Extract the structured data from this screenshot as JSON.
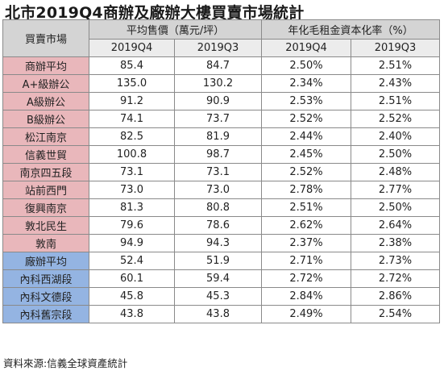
{
  "title": "北市2019Q4商辦及廠辦大樓買賣市場統計",
  "source": "資料來源:信義全球資產統計",
  "colors": {
    "office_row": "#e9b7bb",
    "factory_row": "#94b4e2",
    "header": "#d4d4d4"
  },
  "table": {
    "corner_label": "買賣市場",
    "group_headers": [
      "平均售價（萬元/坪）",
      "年化毛租金資本化率（%）"
    ],
    "sub_headers": [
      "2019Q4",
      "2019Q3",
      "2019Q4",
      "2019Q3"
    ],
    "rows": [
      {
        "name": "商辦平均",
        "type": "office",
        "price_q4": "85.4",
        "price_q3": "84.7",
        "yield_q4": "2.50%",
        "yield_q3": "2.51%"
      },
      {
        "name": "A+級辦公",
        "type": "office",
        "price_q4": "135.0",
        "price_q3": "130.2",
        "yield_q4": "2.34%",
        "yield_q3": "2.43%"
      },
      {
        "name": "A級辦公",
        "type": "office",
        "price_q4": "91.2",
        "price_q3": "90.9",
        "yield_q4": "2.53%",
        "yield_q3": "2.51%"
      },
      {
        "name": "B級辦公",
        "type": "office",
        "price_q4": "74.1",
        "price_q3": "73.7",
        "yield_q4": "2.52%",
        "yield_q3": "2.52%"
      },
      {
        "name": "松江南京",
        "type": "office",
        "price_q4": "82.5",
        "price_q3": "81.9",
        "yield_q4": "2.44%",
        "yield_q3": "2.40%"
      },
      {
        "name": "信義世貿",
        "type": "office",
        "price_q4": "100.8",
        "price_q3": "98.7",
        "yield_q4": "2.45%",
        "yield_q3": "2.50%"
      },
      {
        "name": "南京四五段",
        "type": "office",
        "price_q4": "73.1",
        "price_q3": "73.1",
        "yield_q4": "2.52%",
        "yield_q3": "2.48%"
      },
      {
        "name": "站前西門",
        "type": "office",
        "price_q4": "73.0",
        "price_q3": "73.0",
        "yield_q4": "2.78%",
        "yield_q3": "2.77%"
      },
      {
        "name": "復興南京",
        "type": "office",
        "price_q4": "81.3",
        "price_q3": "80.8",
        "yield_q4": "2.51%",
        "yield_q3": "2.50%"
      },
      {
        "name": "敦北民生",
        "type": "office",
        "price_q4": "79.6",
        "price_q3": "78.6",
        "yield_q4": "2.62%",
        "yield_q3": "2.64%"
      },
      {
        "name": "敦南",
        "type": "office",
        "price_q4": "94.9",
        "price_q3": "94.3",
        "yield_q4": "2.37%",
        "yield_q3": "2.38%"
      },
      {
        "name": "廠辦平均",
        "type": "factory",
        "price_q4": "52.4",
        "price_q3": "51.9",
        "yield_q4": "2.71%",
        "yield_q3": "2.73%"
      },
      {
        "name": "內科西湖段",
        "type": "factory",
        "price_q4": "60.1",
        "price_q3": "59.4",
        "yield_q4": "2.72%",
        "yield_q3": "2.72%"
      },
      {
        "name": "內科文德段",
        "type": "factory",
        "price_q4": "45.8",
        "price_q3": "45.3",
        "yield_q4": "2.84%",
        "yield_q3": "2.86%"
      },
      {
        "name": "內科舊宗段",
        "type": "factory",
        "price_q4": "43.8",
        "price_q3": "43.8",
        "yield_q4": "2.49%",
        "yield_q3": "2.54%"
      }
    ]
  }
}
